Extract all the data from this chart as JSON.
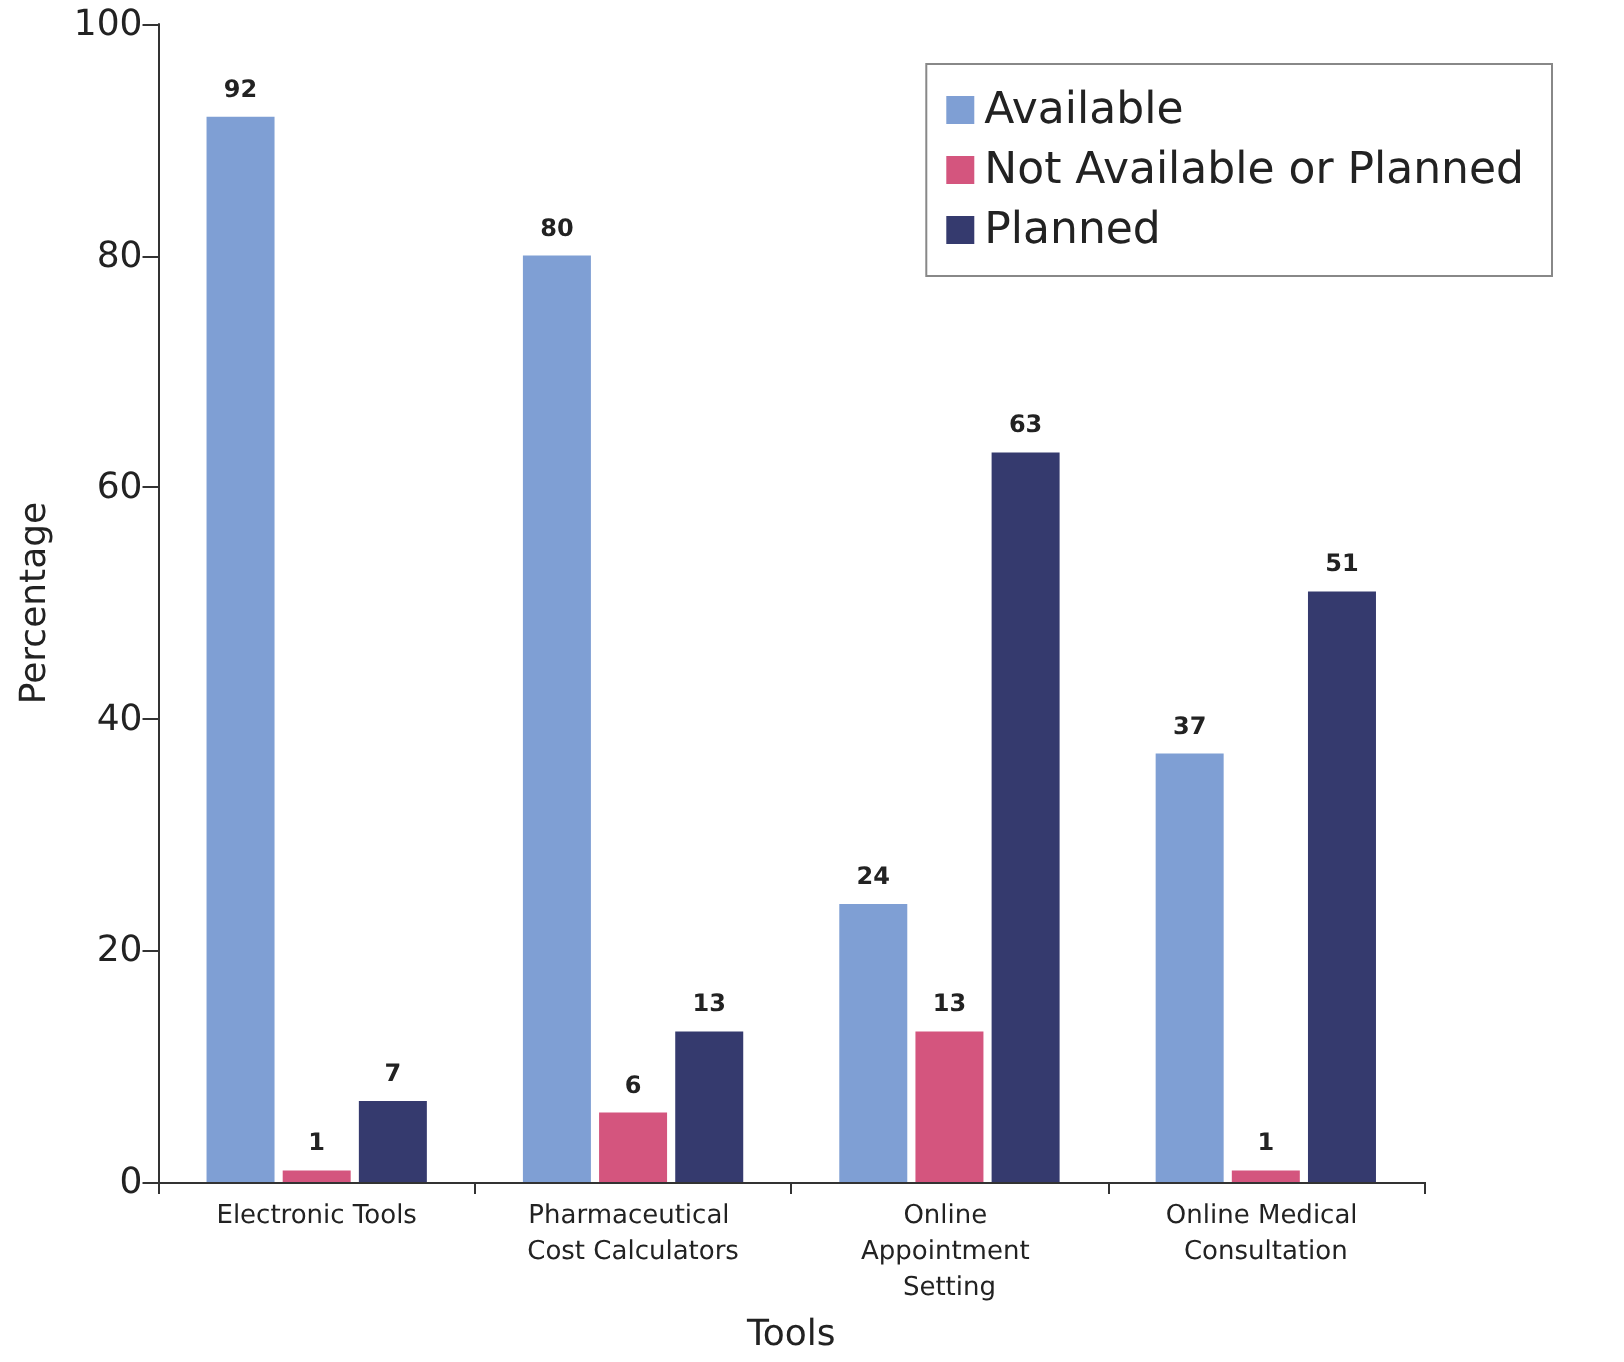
{
  "chart_data": {
    "type": "bar",
    "xlabel": "Tools",
    "ylabel": "Percentage",
    "categories": [
      "Electronic Tools",
      "Pharmaceutical Cost Calculators",
      "Online Appointment Setting",
      "Online Medical Consultation"
    ],
    "series": [
      {
        "name": "Available",
        "color": "#7f9fd4",
        "values": [
          92,
          80,
          24,
          37
        ]
      },
      {
        "name": "Not Available or Planned",
        "color": "#d4557e",
        "values": [
          1,
          6,
          13,
          1
        ]
      },
      {
        "name": "Planned",
        "color": "#353a6e",
        "values": [
          7,
          13,
          63,
          51
        ]
      }
    ],
    "ylim": [
      0,
      100
    ],
    "yticks": [
      0,
      20,
      40,
      60,
      80,
      100
    ],
    "grid": false,
    "legend": "top right",
    "data_labels": true
  }
}
